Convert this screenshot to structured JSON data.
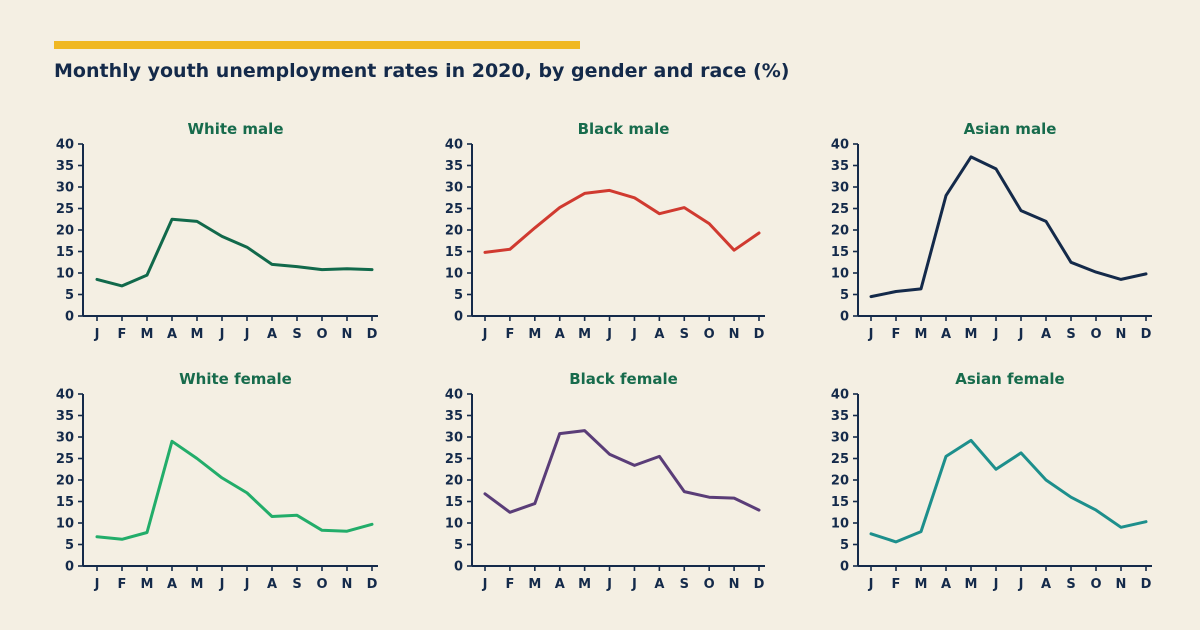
{
  "header": {
    "title": "Monthly youth unemployment rates in 2020, by gender and race (%)",
    "accent_color": "#f0b823"
  },
  "chart_data": [
    {
      "type": "line",
      "title": "White male",
      "categories": [
        "J",
        "F",
        "M",
        "A",
        "M",
        "J",
        "J",
        "A",
        "S",
        "O",
        "N",
        "D"
      ],
      "values": [
        8.5,
        7,
        9.5,
        22.5,
        22,
        18.5,
        16,
        12,
        11.5,
        10.8,
        11,
        10.8
      ],
      "ylim": [
        0,
        40
      ],
      "yticks": [
        "0",
        "5",
        "10",
        "15",
        "20",
        "25",
        "30",
        "35",
        "40"
      ],
      "color": "#11694b"
    },
    {
      "type": "line",
      "title": "Black male",
      "categories": [
        "J",
        "F",
        "M",
        "A",
        "M",
        "J",
        "J",
        "A",
        "S",
        "O",
        "N",
        "D"
      ],
      "values": [
        14.8,
        15.5,
        20.5,
        25.2,
        28.5,
        29.2,
        27.5,
        23.8,
        25.2,
        21.5,
        15.3,
        19.3
      ],
      "ylim": [
        0,
        40
      ],
      "yticks": [
        "0",
        "5",
        "10",
        "15",
        "20",
        "25",
        "30",
        "35",
        "40"
      ],
      "color": "#d03a30"
    },
    {
      "type": "line",
      "title": "Asian male",
      "categories": [
        "J",
        "F",
        "M",
        "A",
        "M",
        "J",
        "J",
        "A",
        "S",
        "O",
        "N",
        "D"
      ],
      "values": [
        4.5,
        5.7,
        6.3,
        28,
        37,
        34.2,
        24.5,
        22,
        12.5,
        10.2,
        8.5,
        9.8
      ],
      "ylim": [
        0,
        40
      ],
      "yticks": [
        "0",
        "5",
        "10",
        "15",
        "20",
        "25",
        "30",
        "35",
        "40"
      ],
      "color": "#142a4a"
    },
    {
      "type": "line",
      "title": "White female",
      "categories": [
        "J",
        "F",
        "M",
        "A",
        "M",
        "J",
        "J",
        "A",
        "S",
        "O",
        "N",
        "D"
      ],
      "values": [
        6.8,
        6.2,
        7.8,
        29,
        25,
        20.5,
        17,
        11.5,
        11.8,
        8.3,
        8.1,
        9.7
      ],
      "ylim": [
        0,
        40
      ],
      "yticks": [
        "0",
        "5",
        "10",
        "15",
        "20",
        "25",
        "30",
        "35",
        "40"
      ],
      "color": "#22ad6a"
    },
    {
      "type": "line",
      "title": "Black female",
      "categories": [
        "J",
        "F",
        "M",
        "A",
        "M",
        "J",
        "J",
        "A",
        "S",
        "O",
        "N",
        "D"
      ],
      "values": [
        16.8,
        12.5,
        14.5,
        30.8,
        31.5,
        26,
        23.4,
        25.5,
        17.3,
        16,
        15.8,
        13
      ],
      "ylim": [
        0,
        40
      ],
      "yticks": [
        "0",
        "5",
        "10",
        "15",
        "20",
        "25",
        "30",
        "35",
        "40"
      ],
      "color": "#5a3d78"
    },
    {
      "type": "line",
      "title": "Asian female",
      "categories": [
        "J",
        "F",
        "M",
        "A",
        "M",
        "J",
        "J",
        "A",
        "S",
        "O",
        "N",
        "D"
      ],
      "values": [
        7.5,
        5.6,
        8,
        25.5,
        29.2,
        22.5,
        26.3,
        20,
        16,
        13,
        9,
        10.3
      ],
      "ylim": [
        0,
        40
      ],
      "yticks": [
        "0",
        "5",
        "10",
        "15",
        "20",
        "25",
        "30",
        "35",
        "40"
      ],
      "color": "#1d8f8c"
    }
  ]
}
